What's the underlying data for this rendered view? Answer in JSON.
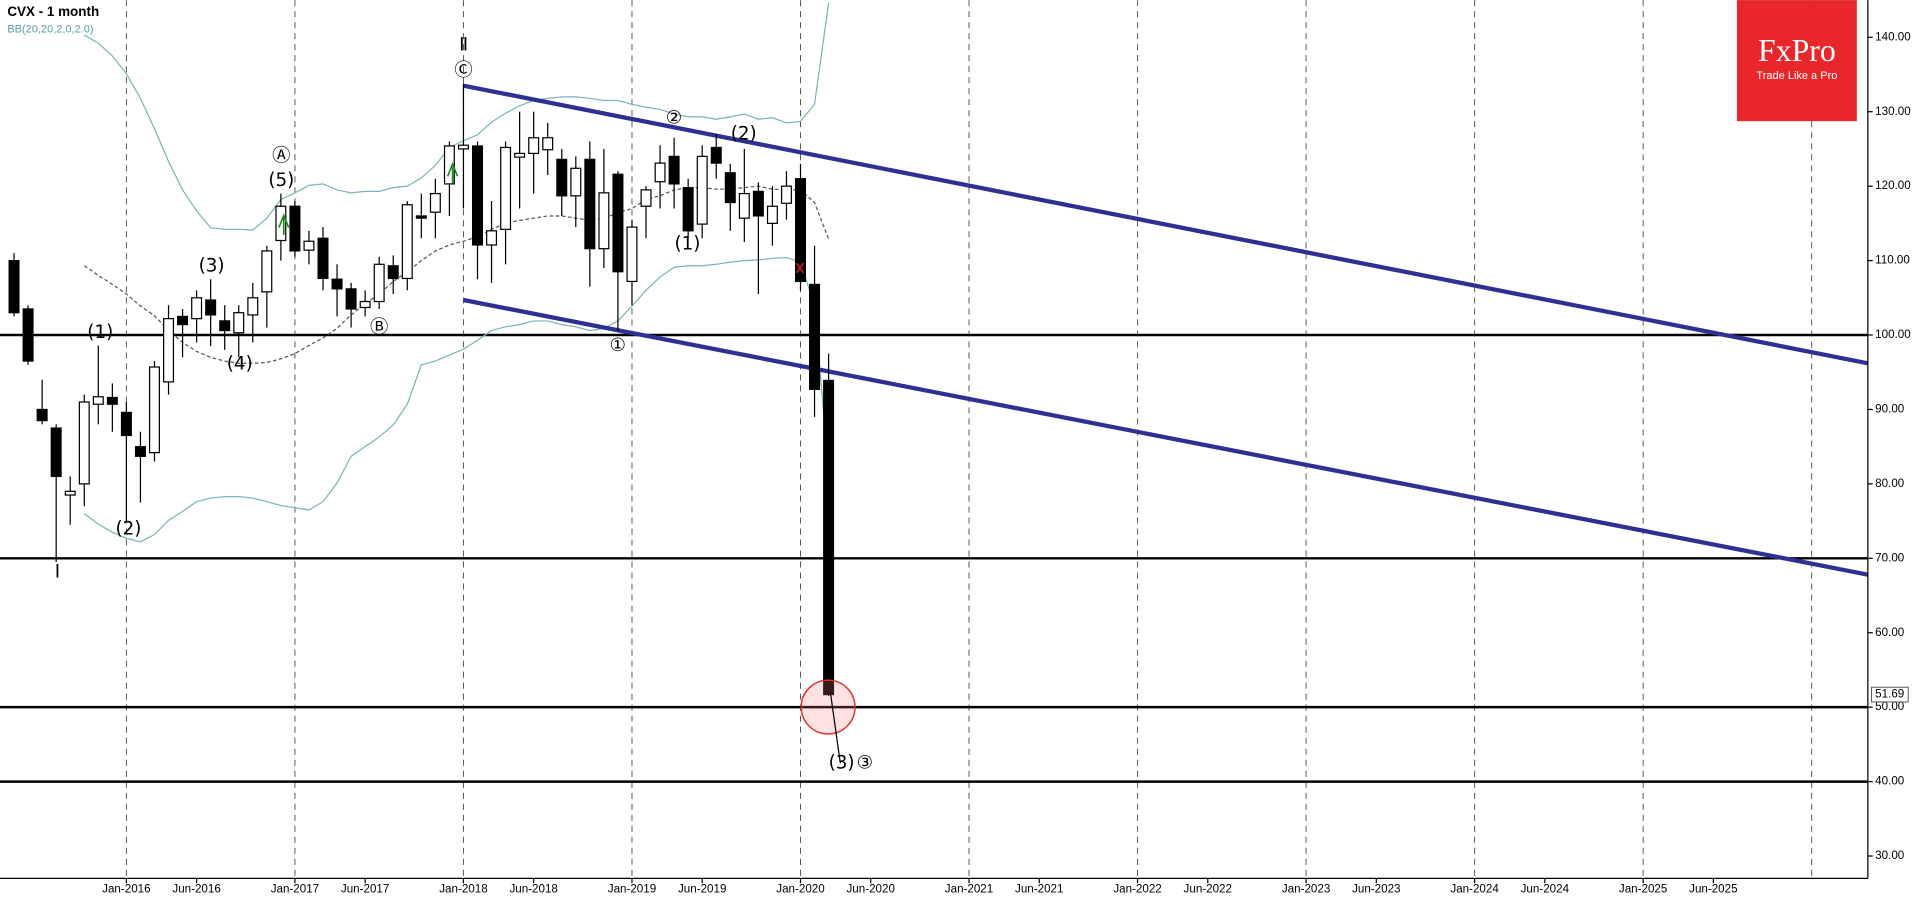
{
  "chart_data": {
    "type": "candlestick",
    "title": "CVX - 1 month",
    "subtitle": "BB(20,20,2,0,2.0)",
    "categories": [
      "May-2015",
      "Jun-2015",
      "Jul-2015",
      "Aug-2015",
      "Sep-2015",
      "Oct-2015",
      "Nov-2015",
      "Dec-2015",
      "Jan-2016",
      "Feb-2016",
      "Mar-2016",
      "Apr-2016",
      "May-2016",
      "Jun-2016",
      "Jul-2016",
      "Aug-2016",
      "Sep-2016",
      "Oct-2016",
      "Nov-2016",
      "Dec-2016",
      "Jan-2017",
      "Feb-2017",
      "Mar-2017",
      "Apr-2017",
      "May-2017",
      "Jun-2017",
      "Jul-2017",
      "Aug-2017",
      "Sep-2017",
      "Oct-2017",
      "Nov-2017",
      "Dec-2017",
      "Jan-2018",
      "Feb-2018",
      "Mar-2018",
      "Apr-2018",
      "May-2018",
      "Jun-2018",
      "Jul-2018",
      "Aug-2018",
      "Sep-2018",
      "Oct-2018",
      "Nov-2018",
      "Dec-2018",
      "Jan-2019",
      "Feb-2019",
      "Mar-2019",
      "Apr-2019",
      "May-2019",
      "Jun-2019",
      "Jul-2019",
      "Aug-2019",
      "Sep-2019",
      "Oct-2019",
      "Nov-2019",
      "Dec-2019",
      "Jan-2020",
      "Feb-2020",
      "Mar-2020"
    ],
    "open": [
      110,
      103.5,
      90,
      87.5,
      78.5,
      80,
      90.7,
      91.6,
      89.6,
      85,
      84.2,
      93.7,
      102.5,
      102.2,
      104.7,
      101.9,
      100.3,
      102.7,
      105.8,
      112.7,
      117.3,
      111.4,
      113,
      107.5,
      106.2,
      103.7,
      104.5,
      109.3,
      107.6,
      116,
      116.5,
      120.3,
      125,
      125.4,
      112.1,
      114.2,
      123.9,
      124.4,
      124.9,
      123.6,
      118.7,
      123.6,
      111.6,
      121.6,
      107.2,
      117.3,
      120.6,
      124,
      119.8,
      114.9,
      125.2,
      121.8,
      115.7,
      119.3,
      115,
      117.7,
      121,
      106.8,
      93.9
    ],
    "high": [
      111,
      104,
      94,
      88,
      81,
      92,
      98.6,
      93.5,
      91,
      87,
      96.5,
      104,
      103.5,
      106,
      107.5,
      104,
      104,
      107,
      112,
      119,
      118,
      114,
      114.5,
      109.5,
      107,
      106,
      110.5,
      110.7,
      118,
      119,
      121,
      126,
      133.8,
      126,
      118,
      126,
      130,
      130,
      128.5,
      125,
      124,
      126,
      125,
      122,
      115.5,
      120,
      125.5,
      126.5,
      121,
      125.5,
      127,
      123,
      125,
      120.5,
      120,
      122,
      123,
      112,
      97.5
    ],
    "low": [
      102.5,
      96,
      88,
      69.5,
      74.5,
      77,
      88,
      87,
      75,
      77.5,
      83,
      92,
      97,
      99,
      98.5,
      98,
      97,
      99,
      101,
      110,
      110.5,
      109.5,
      106,
      102.5,
      101,
      102.5,
      103.5,
      105.5,
      106,
      113,
      113,
      116,
      117,
      107.5,
      107,
      109.5,
      117,
      119,
      121.5,
      116,
      114.5,
      106.5,
      109,
      100.5,
      104,
      113,
      117,
      117,
      113,
      113,
      121,
      114,
      112.5,
      105.5,
      112,
      115.5,
      106,
      89,
      51.5
    ],
    "close": [
      103,
      96.5,
      88.5,
      81,
      79,
      91,
      91.7,
      90.7,
      86.5,
      83.7,
      95.7,
      102.2,
      101.4,
      105,
      102.7,
      100.6,
      103,
      105,
      111.3,
      117.3,
      111.3,
      112.6,
      107.6,
      106.2,
      103.5,
      104.5,
      109.5,
      107.6,
      117.5,
      115.7,
      119,
      125.4,
      125.5,
      112.1,
      114,
      125.2,
      124.4,
      126.5,
      126.5,
      118.7,
      122.4,
      111.6,
      119.1,
      108.5,
      114.5,
      119.5,
      123.1,
      120.3,
      114,
      124,
      123.1,
      117.8,
      119,
      116,
      117.3,
      120,
      107.2,
      92.7,
      51.69
    ],
    "up_color": "#ffffff",
    "down_color": "#000000",
    "bollinger": {
      "color": "#78b4b8",
      "middle_color": "#555555",
      "upper": [
        null,
        null,
        null,
        null,
        null,
        140.3,
        139.2,
        137.5,
        135.1,
        131.8,
        127.7,
        123.3,
        119.5,
        116.7,
        114.4,
        114.2,
        114.2,
        114.1,
        115.7,
        118.2,
        119.1,
        120.1,
        120.3,
        119.5,
        119.1,
        119.3,
        119.3,
        119.8,
        120,
        121.1,
        122.8,
        125.2,
        126.1,
        126.9,
        128.6,
        129.8,
        130.8,
        131.5,
        131.8,
        132,
        132,
        131.8,
        131.5,
        131.5,
        131,
        130.6,
        130.3,
        129.7,
        129.3,
        129.3,
        129,
        129.3,
        129.7,
        129,
        129.2,
        128.5,
        128.7,
        131,
        144.6
      ],
      "middle": [
        null,
        null,
        null,
        null,
        null,
        109.3,
        108,
        106.8,
        105.5,
        103.9,
        102.6,
        100.6,
        99,
        97.8,
        97,
        96.5,
        96.2,
        96.2,
        96.3,
        96.8,
        97.5,
        98.6,
        99.6,
        100.9,
        102.7,
        104.2,
        105.5,
        107.2,
        108.5,
        110,
        111.3,
        112.1,
        112.6,
        113.2,
        114.2,
        115,
        115.4,
        115.7,
        116,
        116,
        115.7,
        115.4,
        115.7,
        116.4,
        117,
        118.2,
        118.7,
        119.5,
        119.8,
        119.8,
        119.6,
        119.6,
        119.8,
        120,
        119.6,
        119.5,
        119.5,
        117.8,
        112.9
      ],
      "lower": [
        null,
        null,
        null,
        null,
        null,
        76,
        74.6,
        73.5,
        72.7,
        72.2,
        73.2,
        75.1,
        76.3,
        77.6,
        78.1,
        78.3,
        78.3,
        78.1,
        77.6,
        77.1,
        76.8,
        76.5,
        77.6,
        80.1,
        83.7,
        85,
        86.3,
        87.9,
        90.7,
        96,
        96.5,
        97.3,
        98.1,
        99.3,
        100.6,
        101.1,
        101.4,
        101.9,
        101.9,
        101.4,
        101.1,
        100.6,
        100.9,
        101.9,
        103.9,
        106,
        107.8,
        109.1,
        109.3,
        109.3,
        109.5,
        109.8,
        110,
        110.1,
        110.3,
        110.4,
        109.8,
        103.9,
        81.7
      ]
    },
    "trend_lines": [
      {
        "x": [
          "Jan-2018",
          "May-2026"
        ],
        "values": [
          133.5,
          96.2
        ]
      },
      {
        "x": [
          "Jan-2018",
          "May-2026"
        ],
        "values": [
          104.7,
          67.8
        ]
      }
    ],
    "trend_color": "#2e3192",
    "horizontal_lines": [
      100,
      70,
      50,
      40
    ],
    "last_price": 51.69,
    "annotations": [
      "Ⅰ",
      "(2)",
      "(1)",
      "(3)",
      "(4)",
      "Ⓐ",
      "(5)",
      "Ⓑ",
      "Ⅱ",
      "Ⓒ",
      "①",
      "(1)",
      "②",
      "(2)",
      "(3)",
      "③"
    ],
    "xlim": [
      "Apr-2015",
      "May-2026"
    ],
    "xticks": [
      "Jan-2016",
      "Jun-2016",
      "Jan-2017",
      "Jun-2017",
      "Jan-2018",
      "Jun-2018",
      "Jan-2019",
      "Jun-2019",
      "Jan-2020",
      "Jun-2020",
      "Jan-2021",
      "Jun-2021",
      "Jan-2022",
      "Jun-2022",
      "Jan-2023",
      "Jun-2023",
      "Jan-2024",
      "Jun-2024",
      "Jan-2025",
      "Jun-2025"
    ],
    "ylim": [
      27,
      145
    ],
    "yticks": [
      {
        "value": 30,
        "label": "30.00"
      },
      {
        "value": 40,
        "label": "40.00"
      },
      {
        "value": 50,
        "label": "50.00"
      },
      {
        "value": 60,
        "label": "60.00"
      },
      {
        "value": 70,
        "label": "70.00"
      },
      {
        "value": 80,
        "label": "80.00"
      },
      {
        "value": 90,
        "label": "90.00"
      },
      {
        "value": 100,
        "label": "100.00"
      },
      {
        "value": 110,
        "label": "110.00"
      },
      {
        "value": 120,
        "label": "120.00"
      },
      {
        "value": 130,
        "label": "130.00"
      },
      {
        "value": 140,
        "label": "140.00"
      }
    ],
    "logo": {
      "brand": "FxPro",
      "slogan": "Trade Like a Pro",
      "color": "#e8262b"
    }
  }
}
